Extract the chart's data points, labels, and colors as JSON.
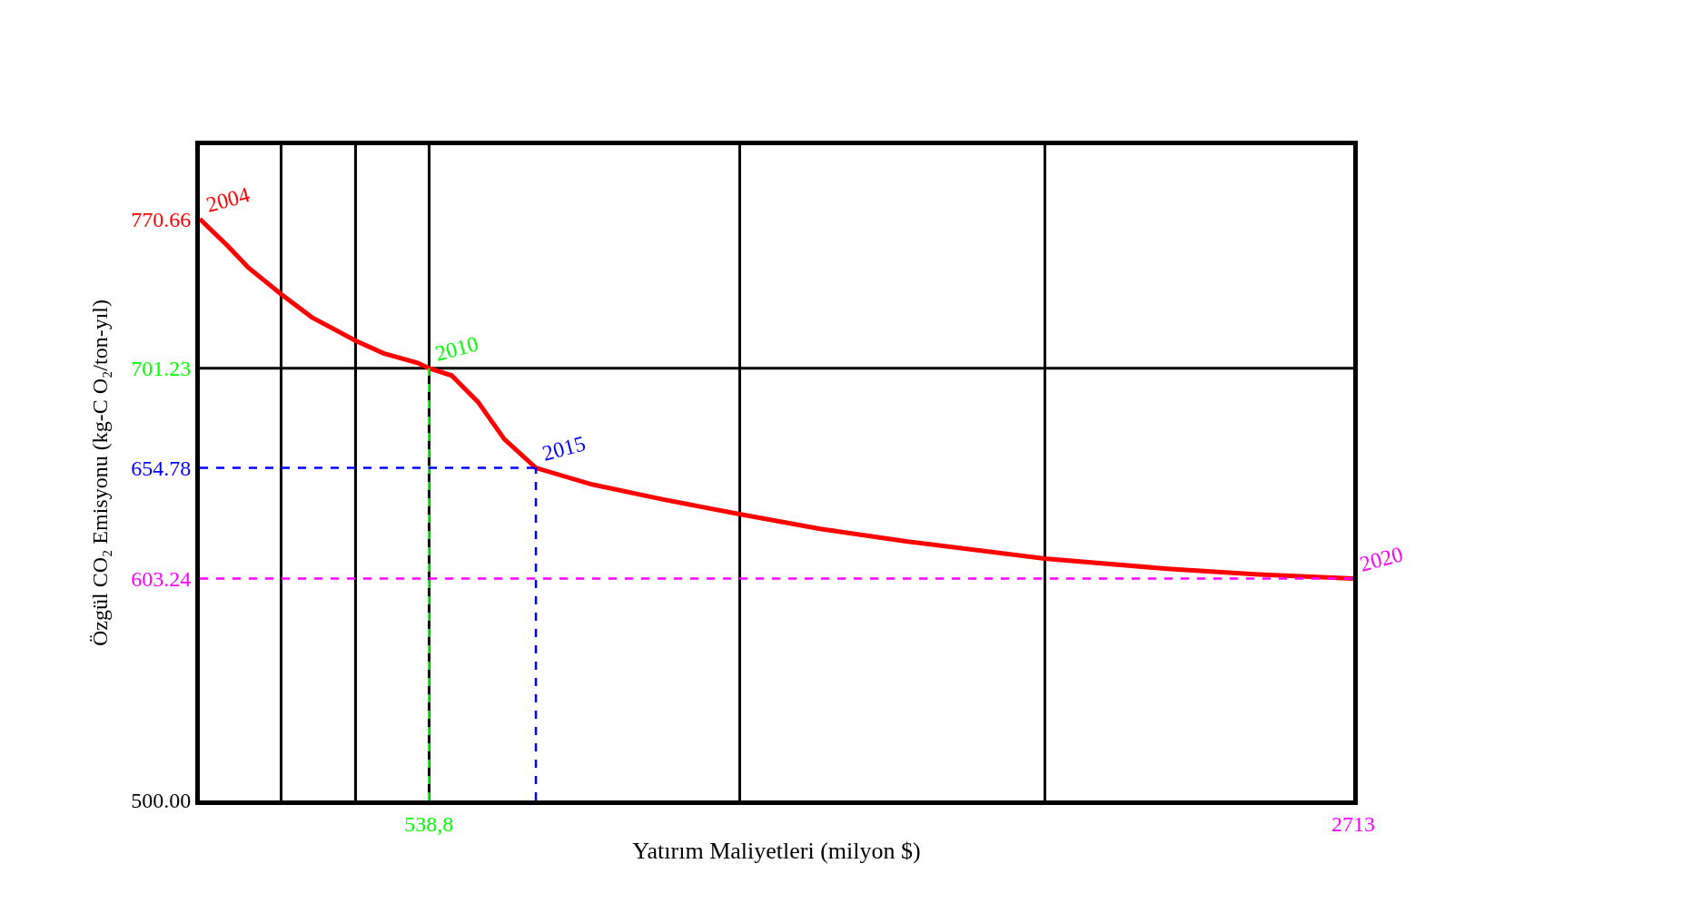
{
  "chart_data": {
    "type": "line",
    "xlabel": "Yatırım Maliyetleri (milyon $)",
    "ylabel": "Özgül CO₂ Emisyonu (kg-C O₂/ton-yıl)",
    "x": [
      0,
      64.6,
      114.3,
      190.9,
      263.4,
      366.8,
      432.4,
      512.0,
      538.8,
      592.4,
      654.3,
      716.2,
      790.5,
      922.5,
      1087.5,
      1269,
      1459,
      1665,
      1987,
      2284,
      2490,
      2713
    ],
    "series": [
      {
        "color": "#ff0000",
        "values": [
          770.66,
          758.3,
          748.0,
          735.7,
          724.9,
          714.0,
          708.1,
          703.7,
          701.23,
          697.8,
          685.5,
          668.2,
          654.78,
          647.1,
          640.2,
          633.3,
          626.4,
          620.5,
          612.6,
          607.7,
          605.2,
          603.24
        ]
      }
    ],
    "xlim": [
      0,
      2713
    ],
    "ylim": [
      500,
      805
    ],
    "xticks": [
      {
        "value": 190.9,
        "label": null
      },
      {
        "value": 366.8,
        "label": null
      },
      {
        "value": 538.8,
        "label": "538,8"
      },
      {
        "value": 1269,
        "label": null
      },
      {
        "value": 1987,
        "label": null
      },
      2713
    ],
    "yticks": [
      {
        "value": 500,
        "label": "500.00"
      },
      603.24,
      654.78,
      701.23,
      770.66
    ],
    "grid": "x",
    "marker": "none",
    "line_style": "solid",
    "ref_lines": [
      {
        "axis": "y",
        "value": 701.23,
        "color": "#000000",
        "line_style": "solid"
      },
      {
        "axis": "x",
        "value": 538.8,
        "color": "#00ff00",
        "line_style": "dashed"
      },
      {
        "axis": "y",
        "value": 654.78,
        "color": "#0000ff",
        "line_style": "dashed"
      },
      {
        "axis": "x",
        "value": 790.5,
        "color": "#0000ff",
        "line_style": "dashed"
      },
      {
        "axis": "y",
        "value": 603.24,
        "color": "#ff00ff",
        "line_style": "dashed"
      }
    ],
    "annotations": [
      {
        "text": "2004",
        "x": 0,
        "y": 770.66
      },
      {
        "text": "2010",
        "x": 538.8,
        "y": 701.23
      },
      {
        "text": "2015",
        "x": 790.5,
        "y": 654.78
      },
      {
        "text": "2020",
        "x": 2713,
        "y": 603.24
      }
    ]
  }
}
